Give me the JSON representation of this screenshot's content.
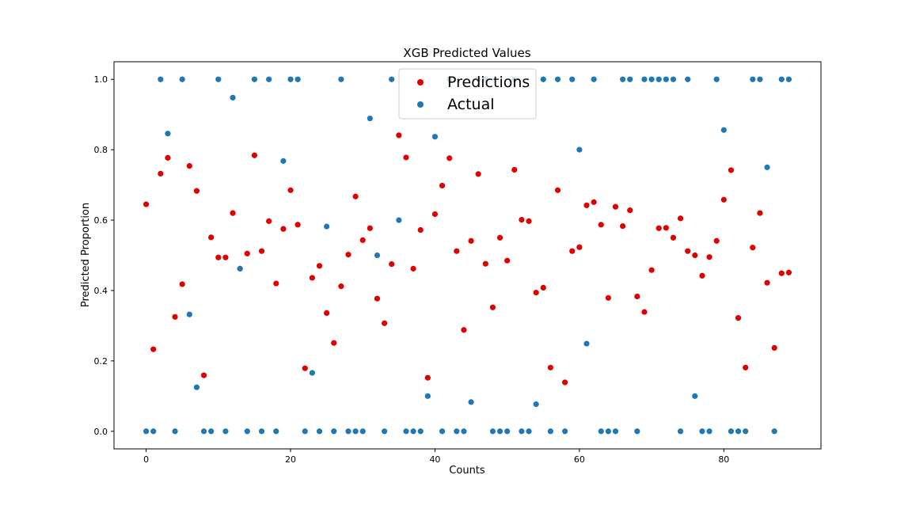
{
  "chart_data": {
    "type": "scatter",
    "title": "XGB Predicted Values",
    "xlabel": "Counts",
    "ylabel": "Predicted Proportion",
    "xlim": [
      -4.45,
      93.45
    ],
    "ylim": [
      -0.05,
      1.05
    ],
    "xticks": [
      0,
      20,
      40,
      60,
      80
    ],
    "yticks": [
      0.0,
      0.2,
      0.4,
      0.6,
      0.8,
      1.0
    ],
    "xtick_labels": [
      "0",
      "20",
      "40",
      "60",
      "80"
    ],
    "ytick_labels": [
      "0.0",
      "0.2",
      "0.4",
      "0.6",
      "0.8",
      "1.0"
    ],
    "grid": false,
    "legend": {
      "placement": "top-center"
    },
    "series": [
      {
        "name": "Predictions",
        "color": "#e00000",
        "x": [
          0,
          1,
          2,
          3,
          4,
          5,
          6,
          7,
          8,
          9,
          10,
          11,
          12,
          13,
          14,
          15,
          16,
          17,
          18,
          19,
          20,
          21,
          22,
          23,
          24,
          25,
          26,
          27,
          28,
          29,
          30,
          31,
          32,
          33,
          34,
          35,
          36,
          37,
          38,
          39,
          40,
          41,
          42,
          43,
          44,
          45,
          46,
          47,
          48,
          49,
          50,
          51,
          52,
          53,
          54,
          55,
          56,
          57,
          58,
          59,
          60,
          61,
          62,
          63,
          64,
          65,
          66,
          67,
          68,
          69,
          70,
          71,
          72,
          73,
          74,
          75,
          76,
          77,
          78,
          79,
          80,
          81,
          82,
          83,
          84,
          85,
          86,
          87,
          88,
          89
        ],
        "y": [
          0.645,
          0.233,
          0.732,
          0.777,
          0.325,
          0.418,
          0.754,
          0.683,
          0.159,
          0.551,
          0.494,
          0.494,
          0.62,
          0.462,
          0.505,
          0.784,
          0.512,
          0.597,
          0.42,
          0.575,
          0.685,
          0.587,
          0.179,
          0.436,
          0.47,
          0.336,
          0.251,
          0.412,
          0.502,
          0.667,
          0.543,
          0.577,
          0.377,
          0.307,
          0.475,
          0.841,
          0.778,
          0.462,
          0.572,
          0.152,
          0.617,
          0.698,
          0.776,
          0.512,
          0.288,
          0.541,
          0.731,
          0.476,
          0.352,
          0.55,
          0.485,
          0.743,
          0.601,
          0.597,
          0.394,
          0.408,
          0.181,
          0.685,
          0.139,
          0.512,
          0.523,
          0.642,
          0.651,
          0.587,
          0.379,
          0.638,
          0.583,
          0.628,
          0.383,
          0.339,
          0.458,
          0.577,
          0.578,
          0.55,
          0.605,
          0.512,
          0.5,
          0.442,
          0.495,
          0.541,
          0.658,
          0.742,
          0.322,
          0.181,
          0.522,
          0.62,
          0.422,
          0.237,
          0.449,
          0.451
        ]
      },
      {
        "name": "Actual",
        "color": "#1f77b4",
        "x": [
          0,
          1,
          2,
          3,
          4,
          5,
          6,
          7,
          8,
          9,
          10,
          11,
          12,
          13,
          14,
          15,
          16,
          17,
          18,
          19,
          20,
          21,
          22,
          23,
          24,
          25,
          26,
          27,
          28,
          29,
          30,
          31,
          32,
          33,
          34,
          35,
          36,
          37,
          38,
          39,
          40,
          41,
          42,
          43,
          44,
          45,
          46,
          47,
          48,
          49,
          50,
          51,
          52,
          53,
          54,
          55,
          56,
          57,
          58,
          59,
          60,
          61,
          62,
          63,
          64,
          65,
          66,
          67,
          68,
          69,
          70,
          71,
          72,
          73,
          74,
          75,
          76,
          77,
          78,
          79,
          80,
          81,
          82,
          83,
          84,
          85,
          86,
          87,
          88,
          89
        ],
        "y": [
          0,
          0,
          1,
          0.846,
          0,
          1,
          0.332,
          0.125,
          0,
          0,
          1,
          0,
          0.948,
          0.462,
          0,
          1,
          0,
          1,
          0,
          0.768,
          1,
          1,
          0,
          0.166,
          0,
          0.582,
          0,
          1,
          0,
          0,
          0,
          0.889,
          0.5,
          0,
          1,
          0.6,
          0,
          0,
          0,
          0.1,
          0.837,
          0,
          1,
          0,
          0,
          0.083,
          1,
          1,
          0,
          0,
          0,
          1,
          0,
          0,
          0.077,
          1,
          0,
          1,
          0,
          1,
          0.8,
          0.249,
          1,
          0,
          0,
          0,
          1,
          1,
          0,
          1,
          1,
          1,
          1,
          1,
          0,
          1,
          0.1,
          0,
          0,
          1,
          0.856,
          0,
          0,
          0,
          1,
          1,
          0.75,
          0,
          1,
          1
        ]
      }
    ]
  }
}
